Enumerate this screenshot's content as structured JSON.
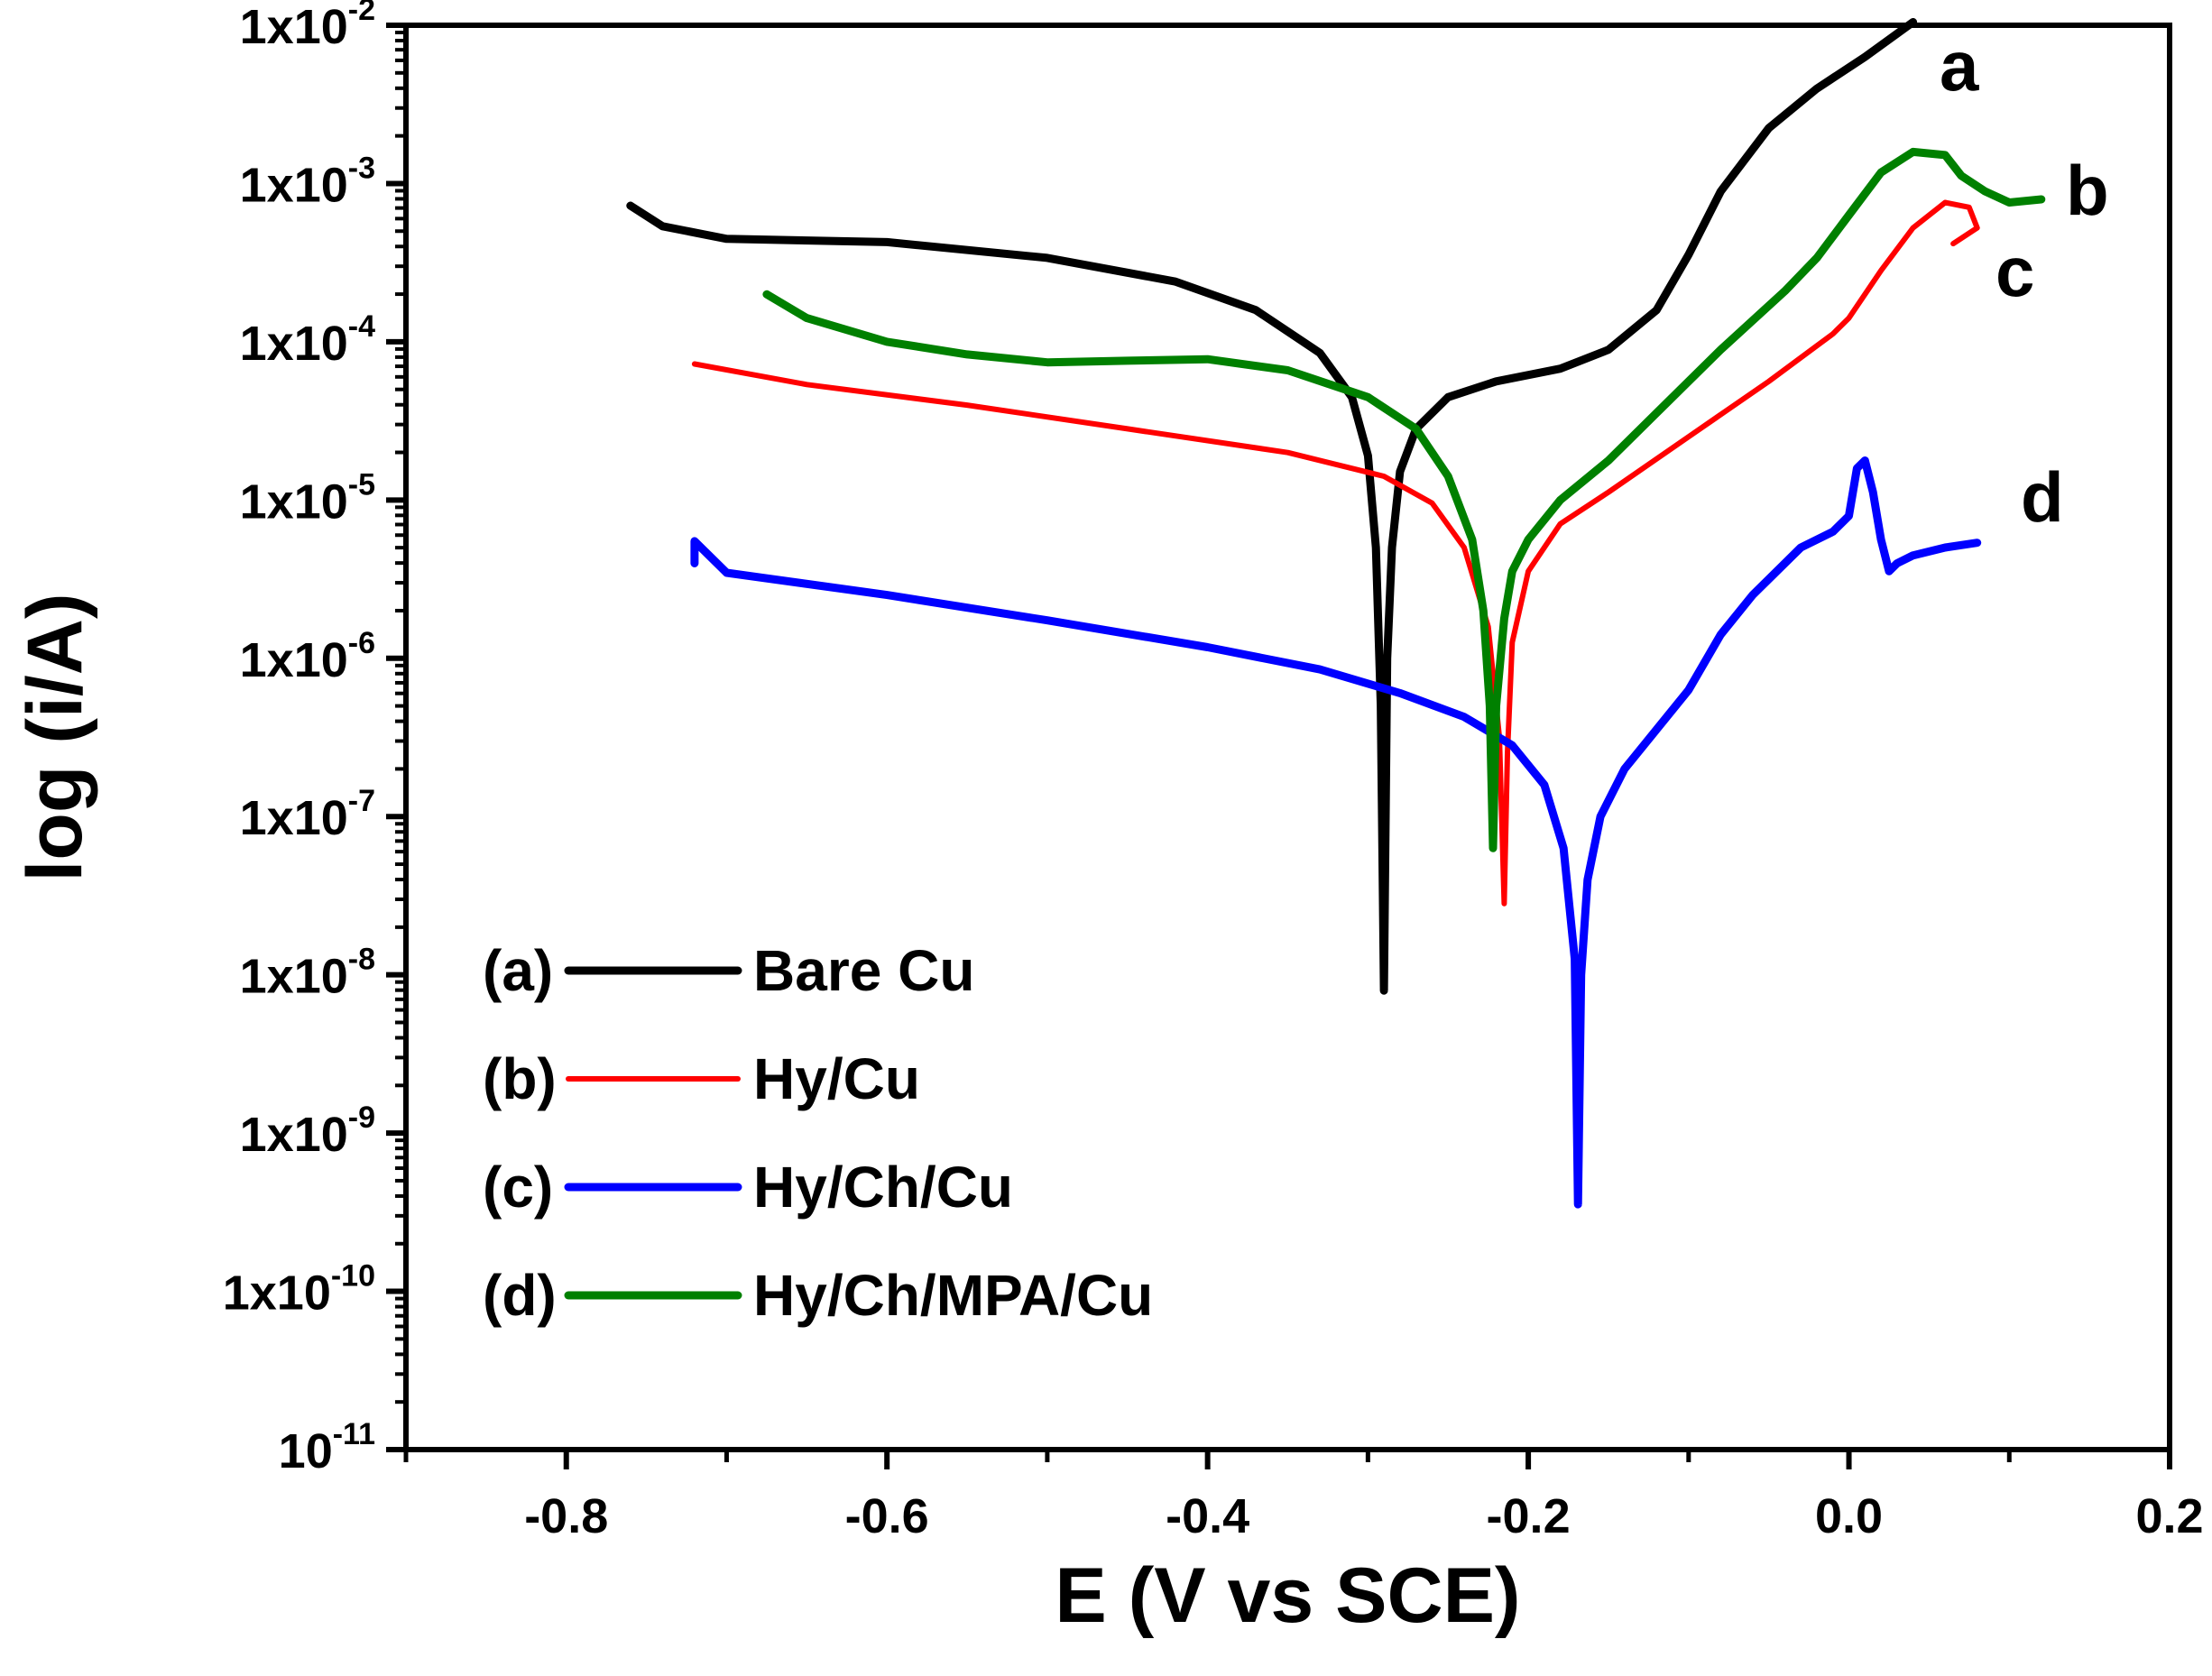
{
  "chart_data": {
    "type": "line",
    "title": "",
    "xlabel": "E (V vs SCE)",
    "ylabel": "log (i/A)",
    "xlim": [
      -0.9,
      0.2
    ],
    "ylim": [
      -11,
      -2
    ],
    "yscale": "log",
    "x_ticks": [
      "-0.8",
      "-0.6",
      "-0.4",
      "-0.2",
      "0.0",
      "0.2"
    ],
    "y_ticks": [
      {
        "base": "1x10",
        "exp": "-2"
      },
      {
        "base": "1x10",
        "exp": "-3"
      },
      {
        "base": "1x10",
        "exp": "-4"
      },
      {
        "base": "1x10",
        "exp": "-5"
      },
      {
        "base": "1x10",
        "exp": "-6"
      },
      {
        "base": "1x10",
        "exp": "-7"
      },
      {
        "base": "1x10",
        "exp": "-8"
      },
      {
        "base": "1x10",
        "exp": "-9"
      },
      {
        "base": "1x10",
        "exp": "-10"
      },
      {
        "base": "10",
        "exp": "-11"
      }
    ],
    "legend_position": "bottom-left",
    "series": [
      {
        "id": "a",
        "name": "Bare Cu",
        "legend_tag": "(a)",
        "curve_tag": "a",
        "color": "#000000",
        "points": [
          [
            -0.76,
            -3.14
          ],
          [
            -0.74,
            -3.27
          ],
          [
            -0.7,
            -3.35
          ],
          [
            -0.6,
            -3.37
          ],
          [
            -0.5,
            -3.47
          ],
          [
            -0.42,
            -3.62
          ],
          [
            -0.37,
            -3.8
          ],
          [
            -0.33,
            -4.07
          ],
          [
            -0.31,
            -4.35
          ],
          [
            -0.3,
            -4.72
          ],
          [
            -0.295,
            -5.3
          ],
          [
            -0.292,
            -6.3
          ],
          [
            -0.29,
            -8.1
          ],
          [
            -0.288,
            -6.0
          ],
          [
            -0.285,
            -5.3
          ],
          [
            -0.28,
            -4.82
          ],
          [
            -0.27,
            -4.55
          ],
          [
            -0.25,
            -4.35
          ],
          [
            -0.22,
            -4.25
          ],
          [
            -0.18,
            -4.17
          ],
          [
            -0.15,
            -4.05
          ],
          [
            -0.12,
            -3.8
          ],
          [
            -0.1,
            -3.45
          ],
          [
            -0.08,
            -3.05
          ],
          [
            -0.05,
            -2.65
          ],
          [
            -0.02,
            -2.4
          ],
          [
            0.01,
            -2.2
          ],
          [
            0.04,
            -1.98
          ]
        ]
      },
      {
        "id": "b",
        "name": "Hy/Cu",
        "legend_tag": "(b)",
        "curve_tag": "c",
        "color": "#ff0000",
        "points": [
          [
            -0.72,
            -4.14
          ],
          [
            -0.65,
            -4.27
          ],
          [
            -0.55,
            -4.4
          ],
          [
            -0.45,
            -4.55
          ],
          [
            -0.35,
            -4.7
          ],
          [
            -0.29,
            -4.85
          ],
          [
            -0.26,
            -5.02
          ],
          [
            -0.24,
            -5.3
          ],
          [
            -0.225,
            -5.8
          ],
          [
            -0.218,
            -6.5
          ],
          [
            -0.215,
            -7.55
          ],
          [
            -0.213,
            -6.6
          ],
          [
            -0.21,
            -5.9
          ],
          [
            -0.2,
            -5.45
          ],
          [
            -0.18,
            -5.15
          ],
          [
            -0.15,
            -4.95
          ],
          [
            -0.1,
            -4.6
          ],
          [
            -0.05,
            -4.25
          ],
          [
            -0.01,
            -3.95
          ],
          [
            0.0,
            -3.85
          ],
          [
            0.02,
            -3.55
          ],
          [
            0.04,
            -3.28
          ],
          [
            0.06,
            -3.12
          ],
          [
            0.075,
            -3.15
          ],
          [
            0.08,
            -3.28
          ],
          [
            0.065,
            -3.38
          ]
        ]
      },
      {
        "id": "c",
        "name": "Hy/Ch/Cu",
        "legend_tag": "(c)",
        "curve_tag": "d",
        "color": "#0000ff",
        "points": [
          [
            -0.72,
            -5.4
          ],
          [
            -0.72,
            -5.26
          ],
          [
            -0.7,
            -5.46
          ],
          [
            -0.6,
            -5.6
          ],
          [
            -0.5,
            -5.76
          ],
          [
            -0.4,
            -5.93
          ],
          [
            -0.33,
            -6.07
          ],
          [
            -0.28,
            -6.22
          ],
          [
            -0.24,
            -6.37
          ],
          [
            -0.21,
            -6.55
          ],
          [
            -0.19,
            -6.8
          ],
          [
            -0.178,
            -7.2
          ],
          [
            -0.171,
            -7.9
          ],
          [
            -0.169,
            -9.45
          ],
          [
            -0.167,
            -8.0
          ],
          [
            -0.163,
            -7.4
          ],
          [
            -0.155,
            -7.0
          ],
          [
            -0.14,
            -6.7
          ],
          [
            -0.12,
            -6.45
          ],
          [
            -0.1,
            -6.2
          ],
          [
            -0.08,
            -5.85
          ],
          [
            -0.06,
            -5.6
          ],
          [
            -0.03,
            -5.3
          ],
          [
            -0.01,
            -5.2
          ],
          [
            0.0,
            -5.1
          ],
          [
            0.005,
            -4.8
          ],
          [
            0.01,
            -4.75
          ],
          [
            0.015,
            -4.95
          ],
          [
            0.02,
            -5.25
          ],
          [
            0.025,
            -5.45
          ],
          [
            0.03,
            -5.4
          ],
          [
            0.04,
            -5.35
          ],
          [
            0.06,
            -5.3
          ],
          [
            0.08,
            -5.27
          ]
        ]
      },
      {
        "id": "d",
        "name": "Hy/Ch/MPA/Cu",
        "legend_tag": "(d)",
        "curve_tag": "b",
        "color": "#008000",
        "points": [
          [
            -0.675,
            -3.7
          ],
          [
            -0.65,
            -3.85
          ],
          [
            -0.6,
            -4.0
          ],
          [
            -0.55,
            -4.08
          ],
          [
            -0.5,
            -4.13
          ],
          [
            -0.45,
            -4.12
          ],
          [
            -0.4,
            -4.11
          ],
          [
            -0.35,
            -4.18
          ],
          [
            -0.3,
            -4.35
          ],
          [
            -0.27,
            -4.55
          ],
          [
            -0.25,
            -4.85
          ],
          [
            -0.235,
            -5.25
          ],
          [
            -0.228,
            -5.7
          ],
          [
            -0.224,
            -6.3
          ],
          [
            -0.222,
            -7.2
          ],
          [
            -0.22,
            -6.3
          ],
          [
            -0.215,
            -5.75
          ],
          [
            -0.21,
            -5.45
          ],
          [
            -0.2,
            -5.25
          ],
          [
            -0.18,
            -5.0
          ],
          [
            -0.15,
            -4.75
          ],
          [
            -0.12,
            -4.45
          ],
          [
            -0.08,
            -4.05
          ],
          [
            -0.04,
            -3.68
          ],
          [
            -0.02,
            -3.47
          ],
          [
            0.0,
            -3.2
          ],
          [
            0.02,
            -2.93
          ],
          [
            0.04,
            -2.8
          ],
          [
            0.06,
            -2.82
          ],
          [
            0.07,
            -2.95
          ],
          [
            0.085,
            -3.05
          ],
          [
            0.1,
            -3.12
          ],
          [
            0.12,
            -3.1
          ]
        ]
      }
    ]
  }
}
